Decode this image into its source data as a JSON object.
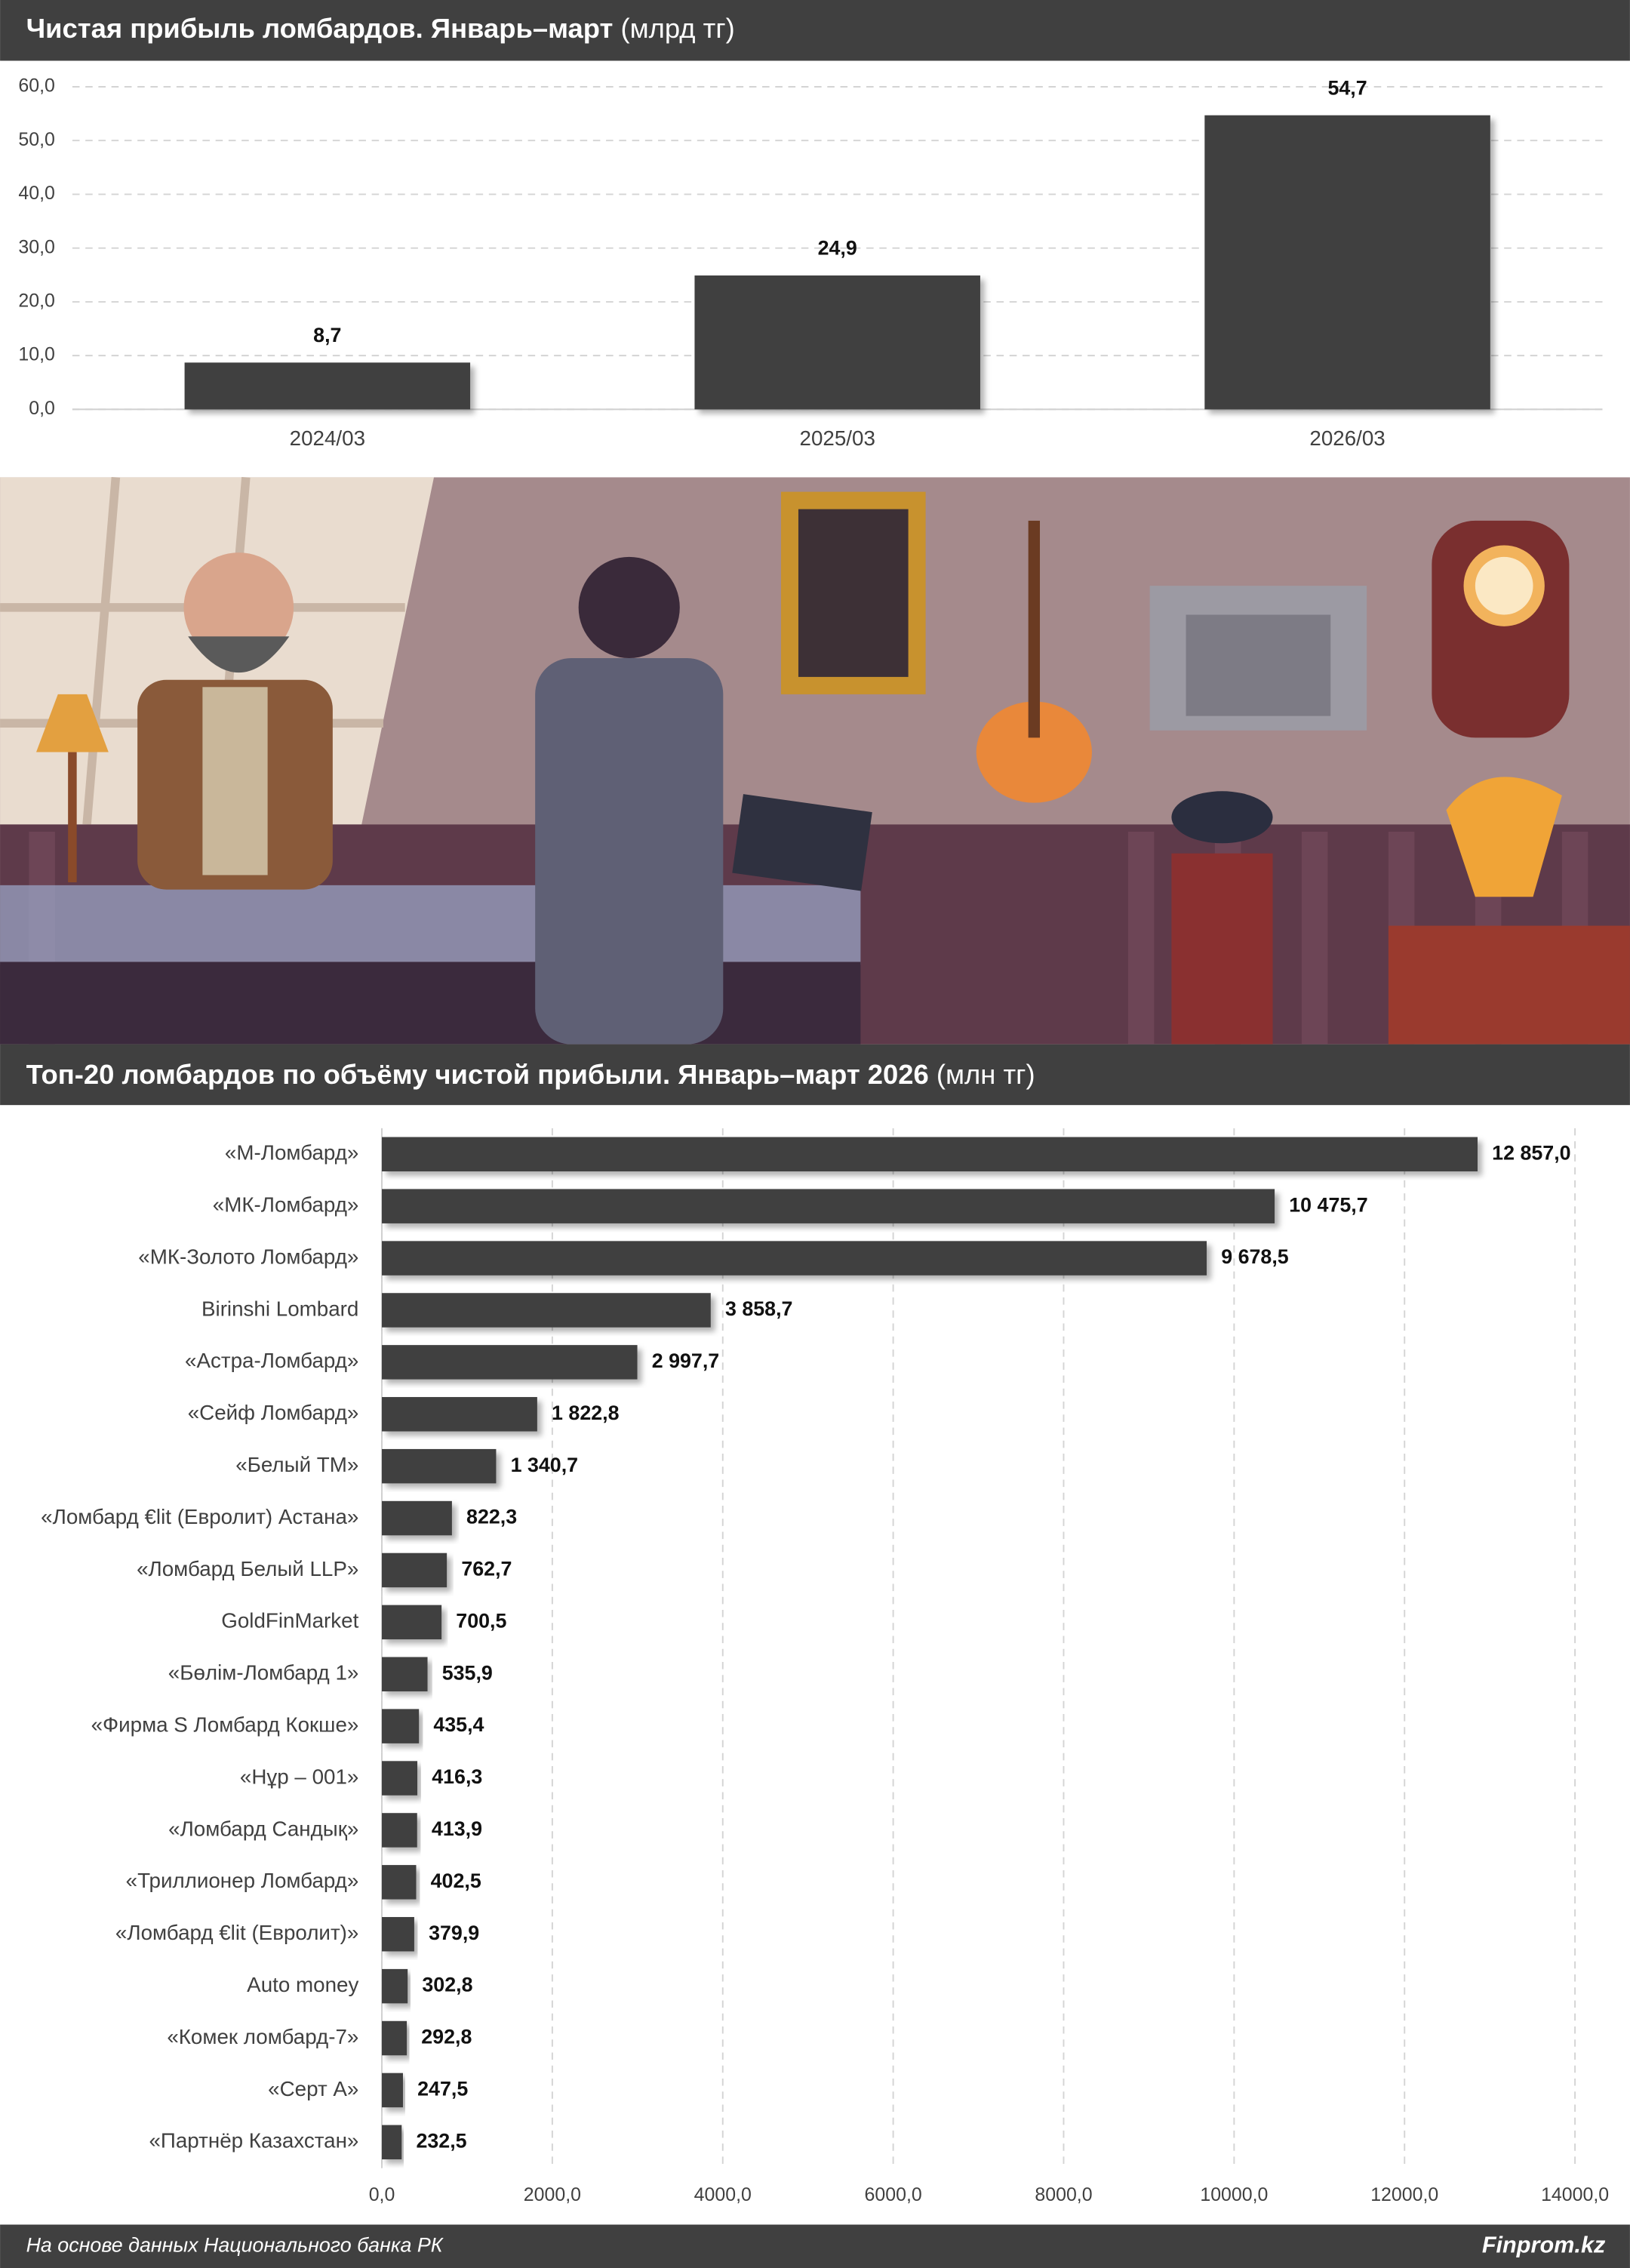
{
  "chart_data": [
    {
      "type": "bar",
      "title": "Чистая прибыль ломбардов. Январь–март",
      "unit": "(млрд тг)",
      "categories": [
        "2024/03",
        "2025/03",
        "2026/03"
      ],
      "values": [
        8.7,
        24.9,
        54.7
      ],
      "value_labels": [
        "8,7",
        "24,9",
        "54,7"
      ],
      "color": "#404040",
      "ylim": [
        0,
        60
      ],
      "yticks": [
        {
          "value": 0,
          "label": "0,0"
        },
        {
          "value": 10,
          "label": "10,0"
        },
        {
          "value": 20,
          "label": "20,0"
        },
        {
          "value": 30,
          "label": "30,0"
        },
        {
          "value": 40,
          "label": "40,0"
        },
        {
          "value": 50,
          "label": "50,0"
        },
        {
          "value": 60,
          "label": "60,0"
        }
      ],
      "grid": true
    },
    {
      "type": "barh",
      "title": "Топ-20 ломбардов по объёму чистой прибыли. Январь–март 2026",
      "unit": "(млн тг)",
      "categories": [
        "«М-Ломбард»",
        "«МК-Ломбард»",
        "«МК-Золото Ломбард»",
        "Birinshi Lombard",
        "«Астра-Ломбард»",
        "«Сейф Ломбард»",
        "«Белый ТМ»",
        "«Ломбард €lit (Евролит) Астана»",
        "«Ломбард Белый LLP»",
        "GoldFinMarket",
        "«Бөлім-Ломбард 1»",
        "«Фирма S Ломбард Кокше»",
        "«Нұр – 001»",
        "«Ломбард Сандық»",
        "«Триллионер Ломбард»",
        "«Ломбард €lit (Евролит)»",
        "Auto money",
        "«Комек ломбард-7»",
        "«Серт А»",
        "«Партнёр Казахстан»"
      ],
      "values": [
        12857.0,
        10475.7,
        9678.5,
        3858.7,
        2997.7,
        1822.8,
        1340.7,
        822.3,
        762.7,
        700.5,
        535.9,
        435.4,
        416.3,
        413.9,
        402.5,
        379.9,
        302.8,
        292.8,
        247.5,
        232.5
      ],
      "value_labels": [
        "12 857,0",
        "10 475,7",
        "9 678,5",
        "3 858,7",
        "2 997,7",
        "1 822,8",
        "1 340,7",
        "822,3",
        "762,7",
        "700,5",
        "535,9",
        "435,4",
        "416,3",
        "413,9",
        "402,5",
        "379,9",
        "302,8",
        "292,8",
        "247,5",
        "232,5"
      ],
      "color": "#404040",
      "xlim": [
        0,
        14000
      ],
      "xticks": [
        {
          "value": 0,
          "label": "0,0"
        },
        {
          "value": 2000,
          "label": "2000,0"
        },
        {
          "value": 4000,
          "label": "4000,0"
        },
        {
          "value": 6000,
          "label": "6000,0"
        },
        {
          "value": 8000,
          "label": "8000,0"
        },
        {
          "value": 10000,
          "label": "10000,0"
        },
        {
          "value": 12000,
          "label": "12000,0"
        },
        {
          "value": 14000,
          "label": "14000,0"
        }
      ],
      "grid": true
    }
  ],
  "source": "На основе данных Национального банка РК",
  "brand": "Finprom.kz"
}
